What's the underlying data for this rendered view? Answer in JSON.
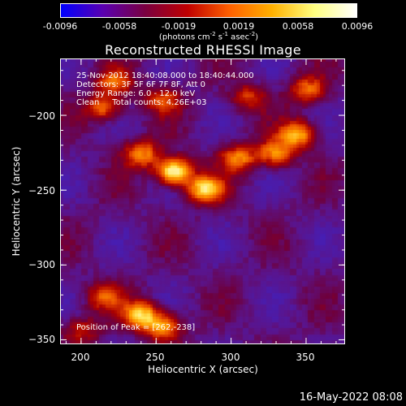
{
  "colorbar": {
    "tick_labels": [
      "-0.0096",
      "-0.0058",
      "-0.0019",
      "0.0019",
      "0.0058",
      "0.0096"
    ],
    "tick_values": [
      -0.0096,
      -0.0058,
      -0.0019,
      0.0019,
      0.0058,
      0.0096
    ],
    "range": [
      -0.0096,
      0.0096
    ],
    "unit_main": "(photons cm",
    "unit_sup1": "-2",
    "unit_mid1": " s",
    "unit_sup2": "-1",
    "unit_mid2": " asec",
    "unit_sup3": "-2",
    "unit_end": ")",
    "colors": [
      "#0000ff",
      "#5a00b0",
      "#7a0040",
      "#c00000",
      "#ff6000",
      "#ffb000",
      "#ffff80",
      "#ffffff"
    ]
  },
  "chart_data": {
    "type": "heatmap",
    "title": "Reconstructed RHESSI Image",
    "xlabel": "Heliocentric X (arcsec)",
    "ylabel": "Heliocentric Y (arcsec)",
    "xlim": [
      186,
      376
    ],
    "ylim": [
      -353,
      -162
    ],
    "x_ticks": [
      200,
      250,
      300,
      350
    ],
    "y_ticks": [
      -200,
      -250,
      -300,
      -350
    ],
    "x_tick_labels": [
      "200",
      "250",
      "300",
      "350"
    ],
    "y_tick_labels": [
      "−200",
      "−250",
      "−300",
      "−350"
    ],
    "annotations": {
      "time": "25-Nov-2012 18:40:08.000 to 18:40:44.000",
      "detectors": "Detectors: 3F 5F 6F 7F 8F, Att 0",
      "energy": "Energy Range: 6.0 - 12.0 keV",
      "clean": "Clean     Total counts: 4.26E+03",
      "peak": "Position of Peak = [262,-238]"
    },
    "peak": [
      262,
      -238
    ],
    "sources": [
      {
        "x": 262,
        "y": -238,
        "amp": 1.0
      },
      {
        "x": 283,
        "y": -250,
        "amp": 0.8
      },
      {
        "x": 240,
        "y": -226,
        "amp": 0.62
      },
      {
        "x": 330,
        "y": -226,
        "amp": 0.62
      },
      {
        "x": 345,
        "y": -213,
        "amp": 0.72
      },
      {
        "x": 305,
        "y": -229,
        "amp": 0.6
      },
      {
        "x": 215,
        "y": -195,
        "amp": 0.55
      },
      {
        "x": 222,
        "y": -178,
        "amp": 0.5
      },
      {
        "x": 255,
        "y": -190,
        "amp": 0.45
      },
      {
        "x": 352,
        "y": -183,
        "amp": 0.55
      },
      {
        "x": 312,
        "y": -188,
        "amp": 0.4
      },
      {
        "x": 240,
        "y": -335,
        "amp": 0.78
      },
      {
        "x": 255,
        "y": -343,
        "amp": 0.65
      },
      {
        "x": 215,
        "y": -323,
        "amp": 0.45
      },
      {
        "x": 200,
        "y": -345,
        "amp": 0.35
      }
    ]
  },
  "footer_date": "16-May-2022 08:08"
}
